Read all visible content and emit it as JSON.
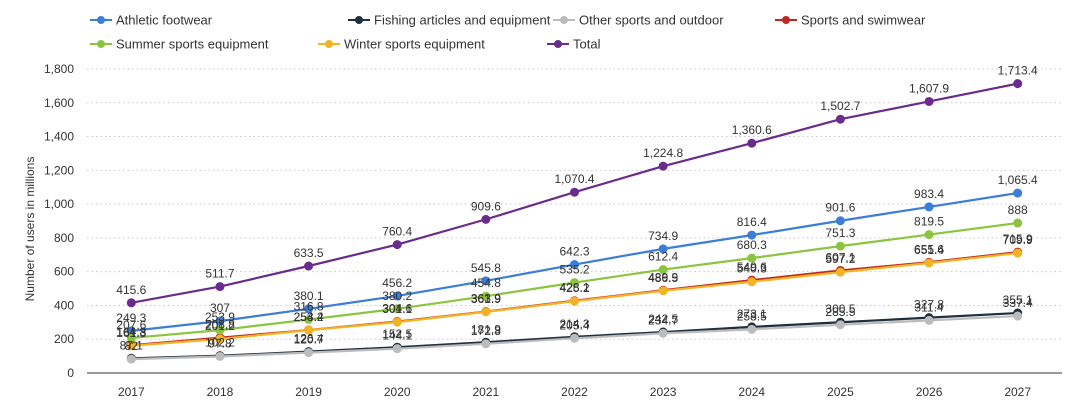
{
  "chart_data": {
    "type": "line",
    "ylabel": "Number of users in millions",
    "ylim": [
      0,
      1800
    ],
    "yticks": [
      0,
      200,
      400,
      600,
      800,
      1000,
      1200,
      1400,
      1600,
      1800
    ],
    "ytick_labels": [
      "0",
      "200",
      "400",
      "600",
      "800",
      "1,000",
      "1,200",
      "1,400",
      "1,600",
      "1,800"
    ],
    "grid": true,
    "legend_position": "top-left",
    "x": [
      "2017",
      "2018",
      "2019",
      "2020",
      "2021",
      "2022",
      "2023",
      "2024",
      "2025",
      "2026",
      "2027"
    ],
    "series": [
      {
        "name": "Athletic footwear",
        "color": "#3b7dd8",
        "values": [
          249.3,
          307,
          380.1,
          456.2,
          545.8,
          642.3,
          734.9,
          816.4,
          901.6,
          983.4,
          1065.4
        ],
        "labels": [
          "249.3",
          "307",
          "380.1",
          "456.2",
          "545.8",
          "642.3",
          "734.9",
          "816.4",
          "901.6",
          "983.4",
          "1,065.4"
        ]
      },
      {
        "name": "Fishing articles and equipment",
        "color": "#1e2f40",
        "values": [
          87.1,
          102.2,
          126.4,
          152.5,
          181.9,
          214.3,
          242.5,
          273.1,
          300.5,
          327.8,
          355.1
        ],
        "labels": [
          "87.1",
          "102.2",
          "126.4",
          "152.5",
          "181.9",
          "214.3",
          "242.5",
          "273.1",
          "300.5",
          "327.8",
          "355.1"
        ]
      },
      {
        "name": "Other sports and outdoor",
        "color": "#bcbcbc",
        "values": [
          82,
          97.8,
          120.7,
          144.1,
          172.8,
          205.4,
          234.7,
          258.5,
          285.5,
          311.4,
          337.4
        ],
        "labels": [
          "82",
          "97.8",
          "120.7",
          "144.1",
          "172.8",
          "205.4",
          "234.7",
          "258.5",
          "285.5",
          "311.4",
          "337.4"
        ]
      },
      {
        "name": "Sports and swimwear",
        "color": "#c0271f",
        "values": [
          164.8,
          208.8,
          254.4,
          304.6,
          363.9,
          428.1,
          489.9,
          549.6,
          607.1,
          655.6,
          715.9
        ],
        "labels": [
          "164.8",
          "208.8",
          "254.4",
          "304.6",
          "363.9",
          "428.1",
          "489.9",
          "549.6",
          "607.1",
          "655.6",
          "715.9"
        ]
      },
      {
        "name": "Summer sports equipment",
        "color": "#8bc53f",
        "values": [
          207.6,
          253.9,
          316.8,
          380.2,
          454.8,
          535.2,
          612.4,
          680.3,
          751.3,
          819.5,
          888
        ],
        "labels": [
          "207.6",
          "253.9",
          "316.8",
          "380.2",
          "454.8",
          "535.2",
          "612.4",
          "680.3",
          "751.3",
          "819.5",
          "888"
        ]
      },
      {
        "name": "Winter sports equipment",
        "color": "#f2b324",
        "values": [
          161.3,
          201.2,
          253.2,
          301.1,
          361.9,
          425.2,
          486.5,
          540.3,
          597.2,
          651.4,
          709.9
        ],
        "labels": [
          "161.3",
          "201.2",
          "253.2",
          "301.1",
          "361.9",
          "425.2",
          "486.5",
          "540.3",
          "597.2",
          "651.4",
          "709.9"
        ]
      },
      {
        "name": "Total",
        "color": "#6a2c8c",
        "values": [
          415.6,
          511.7,
          633.5,
          760.4,
          909.6,
          1070.4,
          1224.8,
          1360.6,
          1502.7,
          1607.9,
          1713.4
        ],
        "labels": [
          "415.6",
          "511.7",
          "633.5",
          "760.4",
          "909.6",
          "1,070.4",
          "1,224.8",
          "1,360.6",
          "1,502.7",
          "1,607.9",
          "1,713.4"
        ]
      }
    ]
  }
}
